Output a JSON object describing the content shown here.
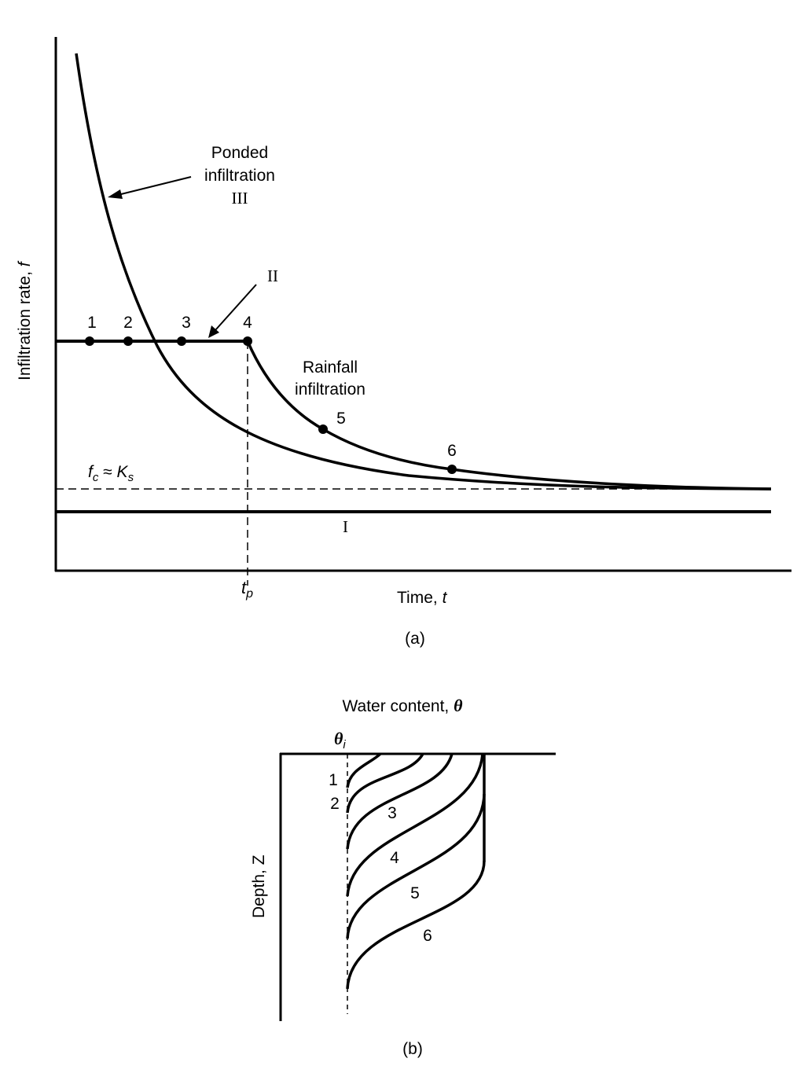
{
  "panel_a": {
    "y_axis_label": "Infiltration rate, ",
    "y_axis_symbol": "f",
    "x_axis_label": "Time, ",
    "x_axis_symbol": "t",
    "tp_symbol": "t",
    "tp_subscript": "p",
    "fc_symbol": "f",
    "fc_sub": "c",
    "fc_approx": " ≈ ",
    "ks_symbol": "K",
    "ks_sub": "s",
    "ponded_line1": "Ponded",
    "ponded_line2": "infiltration",
    "ponded_roman": "III",
    "rainfall_line1": "Rainfall",
    "rainfall_line2": "infiltration",
    "label_II": "II",
    "label_I": "I",
    "points": [
      "1",
      "2",
      "3",
      "4",
      "5",
      "6"
    ],
    "caption": "(a)"
  },
  "panel_b": {
    "title": "Water content, ",
    "title_symbol": "θ",
    "theta_i_symbol": "θ",
    "theta_i_sub": "i",
    "y_axis_label": "Depth, Z",
    "profiles": [
      "1",
      "2",
      "3",
      "4",
      "5",
      "6"
    ],
    "caption": "(b)"
  },
  "colors": {
    "ink": "#000000",
    "background": "#ffffff"
  }
}
